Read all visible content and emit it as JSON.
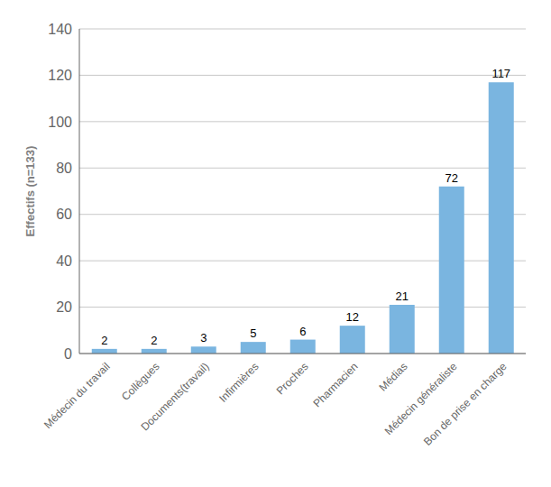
{
  "chart_data": {
    "type": "bar",
    "categories": [
      "Médecin du travail",
      "Collègues",
      "Documents(travail)",
      "Infirmières",
      "Proches",
      "Pharmacien",
      "Médias",
      "Médecin généraliste",
      "Bon de prise en charge"
    ],
    "values": [
      2,
      2,
      3,
      5,
      6,
      12,
      21,
      72,
      117
    ],
    "color": "#7ab5e0",
    "ylabel": "Effectifs (n=133)",
    "ylim": [
      0,
      140
    ],
    "yticks": [
      0,
      20,
      40,
      60,
      80,
      100,
      120,
      140
    ],
    "grid": true,
    "data_labels": true
  }
}
